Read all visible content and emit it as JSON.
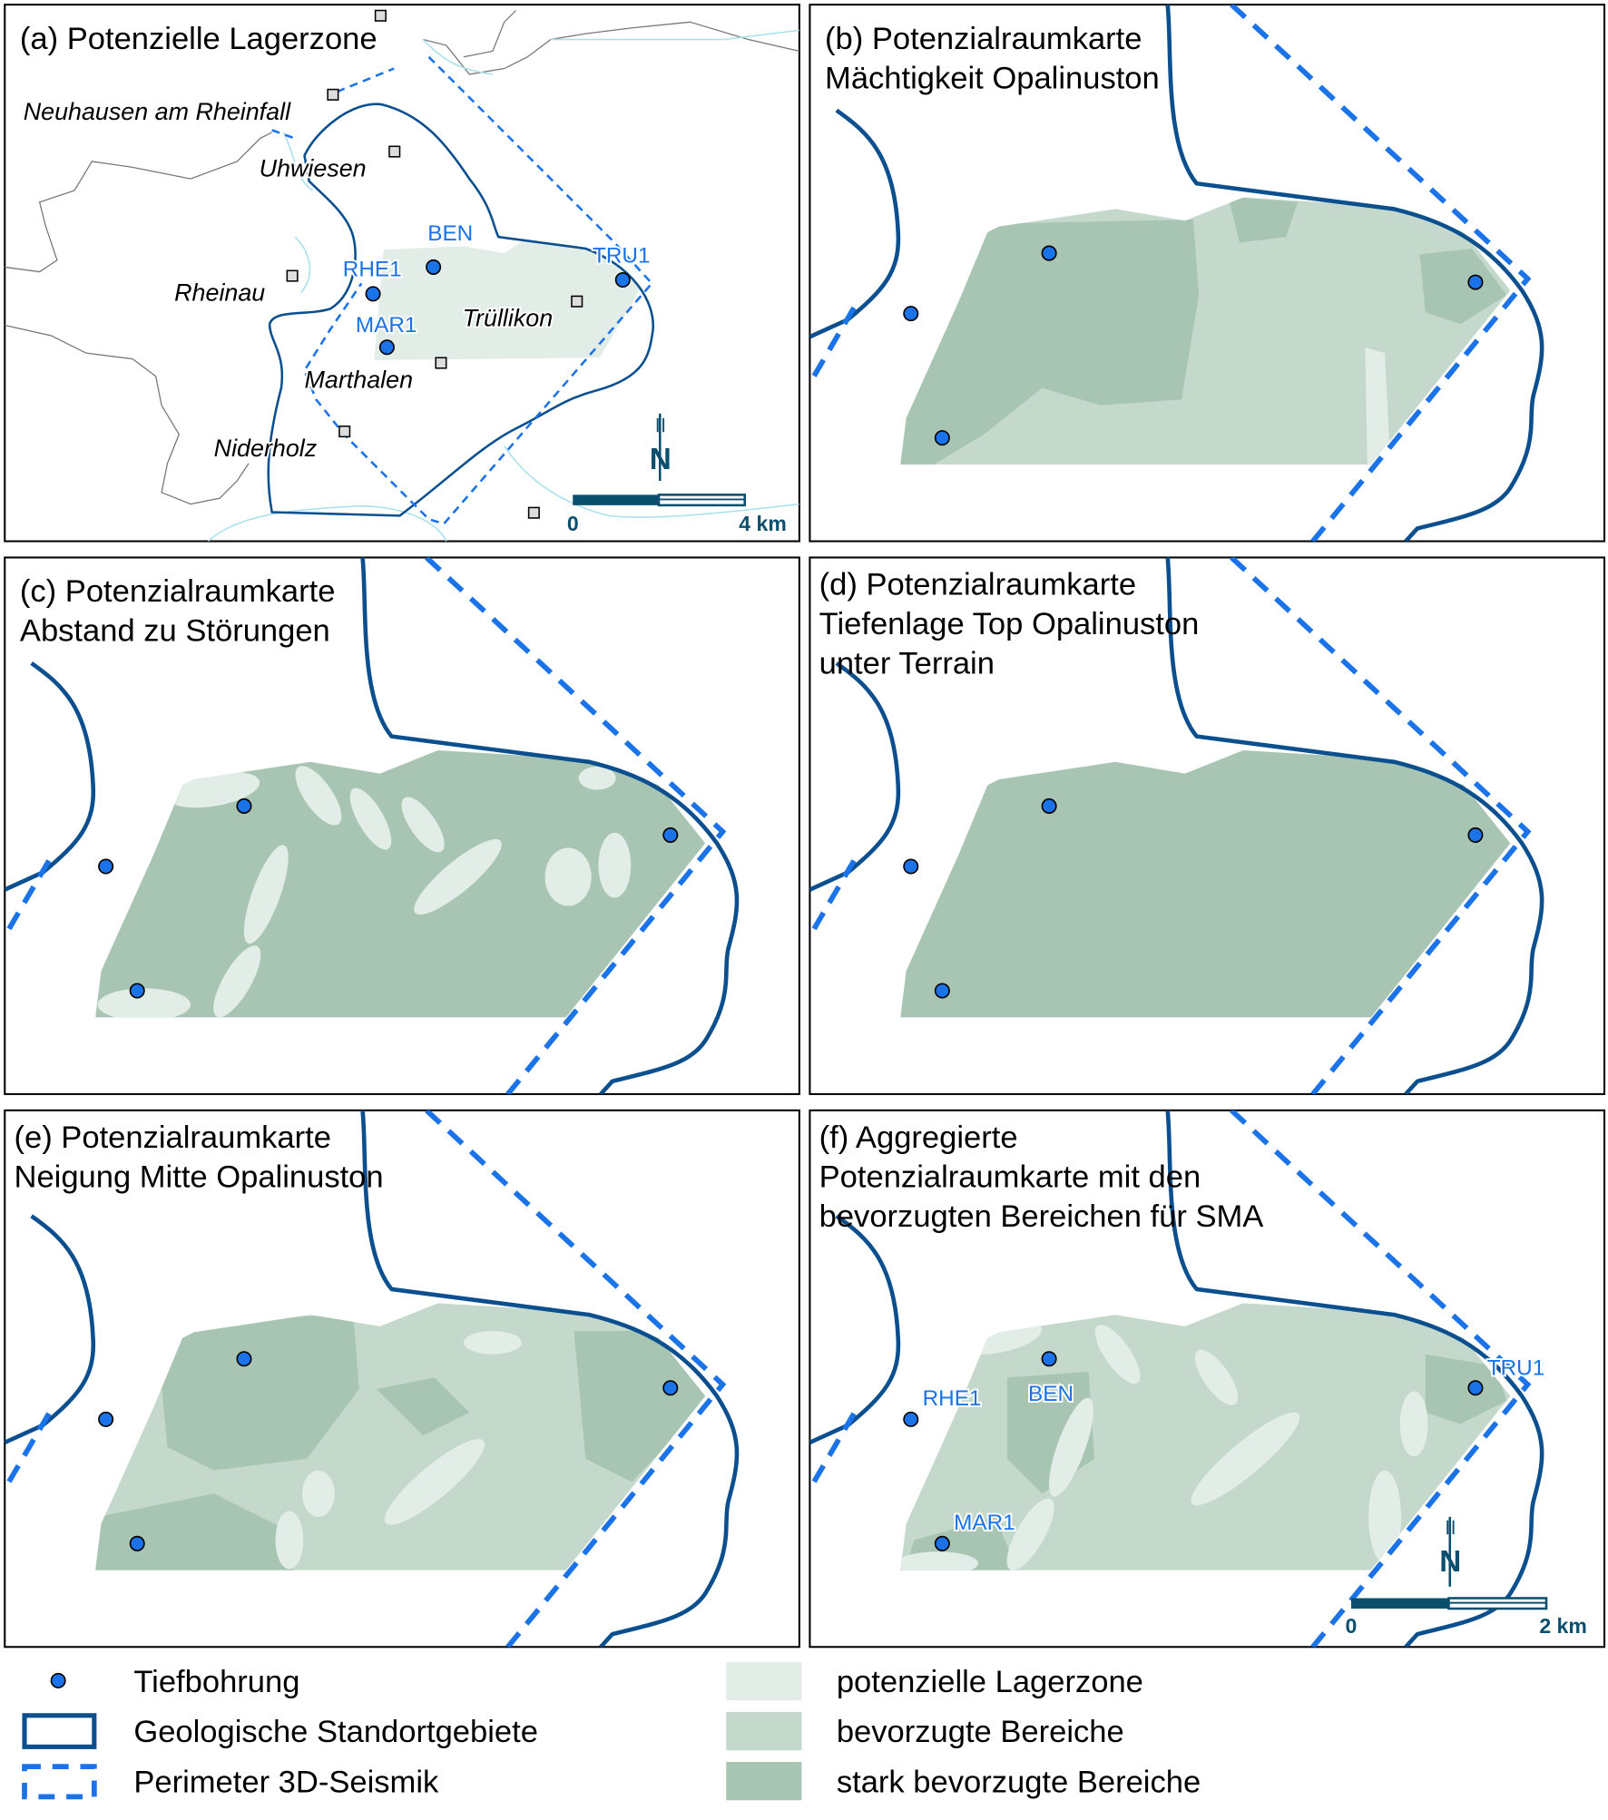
{
  "colors": {
    "potenzielle_lagerzone": "#e2ede7",
    "bevorzugte_bereiche": "#c4d9cc",
    "stark_bevorzugte_bereiche": "#a8c5b3",
    "geologische_standortgebiete": "#0b4f8f",
    "perimeter_3d_seismik": "#1a73e8",
    "tiefbohrung": "#1a73e8"
  },
  "panels": {
    "a": {
      "title": "(a) Potenzielle Lagerzone",
      "places": [
        "Neuhausen am Rheinfall",
        "Uhwiesen",
        "Rheinau",
        "Trüllikon",
        "Marthalen",
        "Niderholz"
      ],
      "boreholes": [
        "BEN",
        "RHE1",
        "MAR1",
        "TRU1"
      ],
      "north": "N",
      "scale": {
        "start": "0",
        "end": "4 km"
      }
    },
    "b": {
      "title_lines": [
        "(b) Potenzialraumkarte",
        "Mächtigkeit Opalinuston"
      ]
    },
    "c": {
      "title_lines": [
        "(c) Potenzialraumkarte",
        "Abstand zu Störungen"
      ]
    },
    "d": {
      "title_lines": [
        "(d) Potenzialraumkarte",
        "Tiefenlage Top Opalinuston",
        "unter Terrain"
      ]
    },
    "e": {
      "title_lines": [
        "(e) Potenzialraumkarte",
        "Neigung Mitte Opalinuston"
      ]
    },
    "f": {
      "title_lines": [
        "(f) Aggregierte",
        "Potenzialraumkarte mit den",
        "bevorzugten Bereichen für SMA"
      ],
      "boreholes": [
        "RHE1",
        "BEN",
        "MAR1",
        "TRU1"
      ],
      "north": "N",
      "scale": {
        "start": "0",
        "end": "2 km"
      }
    }
  },
  "legend": {
    "items": [
      {
        "label": "Tiefbohrung",
        "icon": "blue-dot"
      },
      {
        "label": "Geologische Standortgebiete",
        "icon": "solid-dark-blue-outline"
      },
      {
        "label": "Perimeter 3D-Seismik",
        "icon": "dashed-blue-outline"
      },
      {
        "label": "potenzielle Lagerzone",
        "icon": "light-swatch"
      },
      {
        "label": "bevorzugte Bereiche",
        "icon": "medium-swatch"
      },
      {
        "label": "stark bevorzugte Bereiche",
        "icon": "dark-swatch"
      }
    ]
  }
}
